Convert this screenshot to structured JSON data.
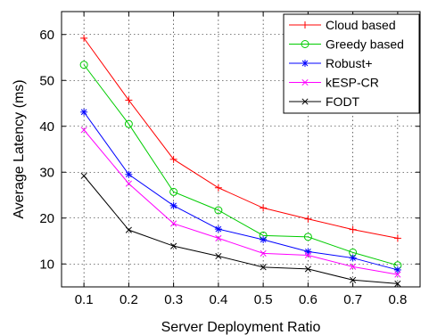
{
  "chart_data": {
    "type": "line",
    "xlabel": "Server Deployment Ratio",
    "ylabel": "Average Latency (ms)",
    "xlim": [
      0.05,
      0.85
    ],
    "ylim": [
      5,
      65
    ],
    "x": [
      0.1,
      0.2,
      0.3,
      0.4,
      0.5,
      0.6,
      0.7,
      0.8
    ],
    "x_tick_labels": [
      "0.1",
      "0.2",
      "0.3",
      "0.4",
      "0.5",
      "0.6",
      "0.7",
      "0.8"
    ],
    "y_ticks": [
      10,
      20,
      30,
      40,
      50,
      60
    ],
    "y_tick_labels": [
      "10",
      "20",
      "30",
      "40",
      "50",
      "60"
    ],
    "grid": true,
    "legend_position": "top-right",
    "series": [
      {
        "name": "Cloud based",
        "color": "#ff0000",
        "marker": "plus",
        "values": [
          59.2,
          45.7,
          32.8,
          26.6,
          22.2,
          19.8,
          17.5,
          15.6
        ]
      },
      {
        "name": "Greedy based",
        "color": "#00cc00",
        "marker": "circle",
        "values": [
          53.4,
          40.5,
          25.7,
          21.7,
          16.2,
          15.9,
          12.5,
          9.7
        ]
      },
      {
        "name": "Robust+",
        "color": "#0000ff",
        "marker": "star",
        "values": [
          43.1,
          29.5,
          22.7,
          17.6,
          15.3,
          12.7,
          11.3,
          8.7
        ]
      },
      {
        "name": "kESP-CR",
        "color": "#ff00ff",
        "marker": "x",
        "values": [
          39.2,
          27.5,
          18.8,
          15.6,
          12.3,
          11.9,
          9.4,
          7.7
        ]
      },
      {
        "name": "FODT",
        "color": "#000000",
        "marker": "x",
        "values": [
          29.2,
          17.4,
          13.9,
          11.7,
          9.3,
          8.9,
          6.5,
          5.7
        ]
      }
    ]
  }
}
